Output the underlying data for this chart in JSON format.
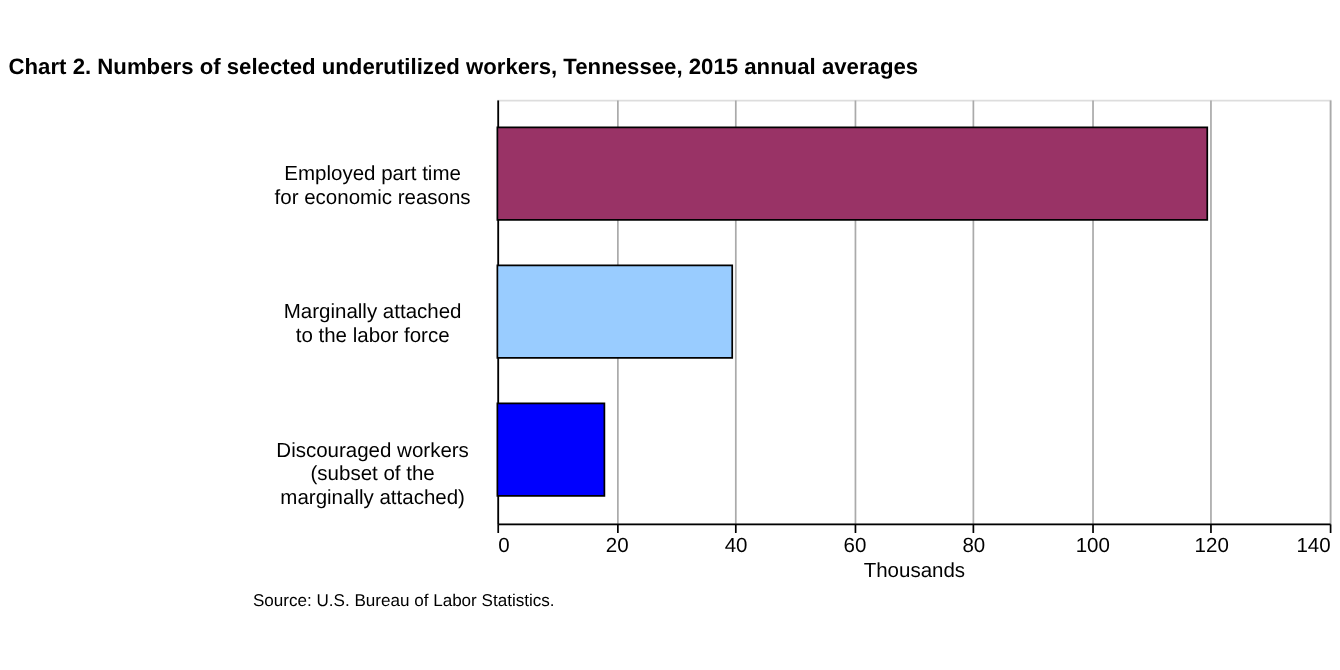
{
  "chart_data": {
    "type": "bar",
    "orientation": "horizontal",
    "title": "Chart 2. Numbers of selected underutilized workers, Tennessee, 2015 annual averages",
    "categories": [
      "Employed part time for economic reasons",
      "Marginally attached to the labor force",
      "Discouraged workers (subset of the marginally attached)"
    ],
    "values": [
      119.4,
      39.5,
      18.0
    ],
    "colors": [
      "#993366",
      "#99ccff",
      "#0000ff"
    ],
    "xlabel": "Thousands",
    "xlim": [
      0,
      140
    ],
    "xticks": [
      0,
      20,
      40,
      60,
      80,
      100,
      120,
      140
    ],
    "grid": "x",
    "legend": false,
    "annotations": [
      "Source: U.S. Bureau of Labor Statistics."
    ]
  }
}
